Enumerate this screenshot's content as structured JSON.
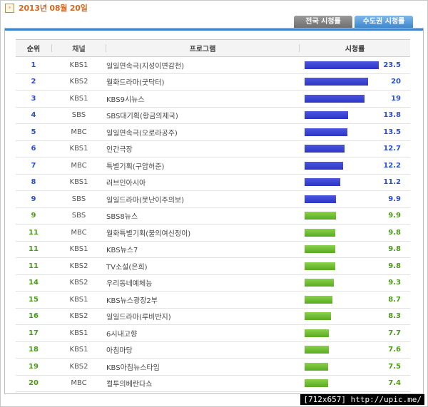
{
  "date": "2013년 08월 20일",
  "tabs": [
    {
      "label": "전국 시청률",
      "active": false
    },
    {
      "label": "수도권 시청률",
      "active": true
    }
  ],
  "table": {
    "headers": {
      "rank": "순위",
      "channel": "채널",
      "program": "프로그램",
      "rating": "시청률"
    },
    "max_rating": 23.5,
    "rows": [
      {
        "rank": "1",
        "channel": "KBS1",
        "program": "일일연속극(지성이면감천)",
        "rating": "23.5",
        "color": "blue"
      },
      {
        "rank": "2",
        "channel": "KBS2",
        "program": "월화드라마(굿닥터)",
        "rating": "20",
        "color": "blue"
      },
      {
        "rank": "3",
        "channel": "KBS1",
        "program": "KBS9시뉴스",
        "rating": "19",
        "color": "blue"
      },
      {
        "rank": "4",
        "channel": "SBS",
        "program": "SBS대기획(황금의제국)",
        "rating": "13.8",
        "color": "blue"
      },
      {
        "rank": "5",
        "channel": "MBC",
        "program": "일일연속극(오로라공주)",
        "rating": "13.5",
        "color": "blue"
      },
      {
        "rank": "6",
        "channel": "KBS1",
        "program": "인간극장",
        "rating": "12.7",
        "color": "blue"
      },
      {
        "rank": "7",
        "channel": "MBC",
        "program": "특별기획(구암허준)",
        "rating": "12.2",
        "color": "blue"
      },
      {
        "rank": "8",
        "channel": "KBS1",
        "program": "러브인아시아",
        "rating": "11.2",
        "color": "blue"
      },
      {
        "rank": "9",
        "channel": "SBS",
        "program": "일일드라마(못난이주의보)",
        "rating": "9.9",
        "color": "blue"
      },
      {
        "rank": "9",
        "channel": "SBS",
        "program": "SBS8뉴스",
        "rating": "9.9",
        "color": "green"
      },
      {
        "rank": "11",
        "channel": "MBC",
        "program": "월화특별기획(불의여신정이)",
        "rating": "9.8",
        "color": "green"
      },
      {
        "rank": "11",
        "channel": "KBS1",
        "program": "KBS뉴스7",
        "rating": "9.8",
        "color": "green"
      },
      {
        "rank": "11",
        "channel": "KBS2",
        "program": "TV소설(은희)",
        "rating": "9.8",
        "color": "green"
      },
      {
        "rank": "14",
        "channel": "KBS2",
        "program": "우리동네예체능",
        "rating": "9.3",
        "color": "green"
      },
      {
        "rank": "15",
        "channel": "KBS1",
        "program": "KBS뉴스광장2부",
        "rating": "8.7",
        "color": "green"
      },
      {
        "rank": "16",
        "channel": "KBS2",
        "program": "일일드라마(루비반지)",
        "rating": "8.3",
        "color": "green"
      },
      {
        "rank": "17",
        "channel": "KBS1",
        "program": "6시내고향",
        "rating": "7.7",
        "color": "green"
      },
      {
        "rank": "18",
        "channel": "KBS1",
        "program": "아침마당",
        "rating": "7.6",
        "color": "green"
      },
      {
        "rank": "19",
        "channel": "KBS2",
        "program": "KBS아침뉴스타임",
        "rating": "7.5",
        "color": "green"
      },
      {
        "rank": "20",
        "channel": "MBC",
        "program": "컬투의베란다쇼",
        "rating": "7.4",
        "color": "green"
      }
    ]
  },
  "colors": {
    "blue_bar": "#2d36c4",
    "green_bar": "#5aaa22",
    "rank_blue": "#2b4fc7",
    "rank_green": "#4b9a16",
    "date_text": "#d2691e",
    "tab_active": "#3f86cc"
  },
  "watermark": "[712x657] http://upic.me/"
}
